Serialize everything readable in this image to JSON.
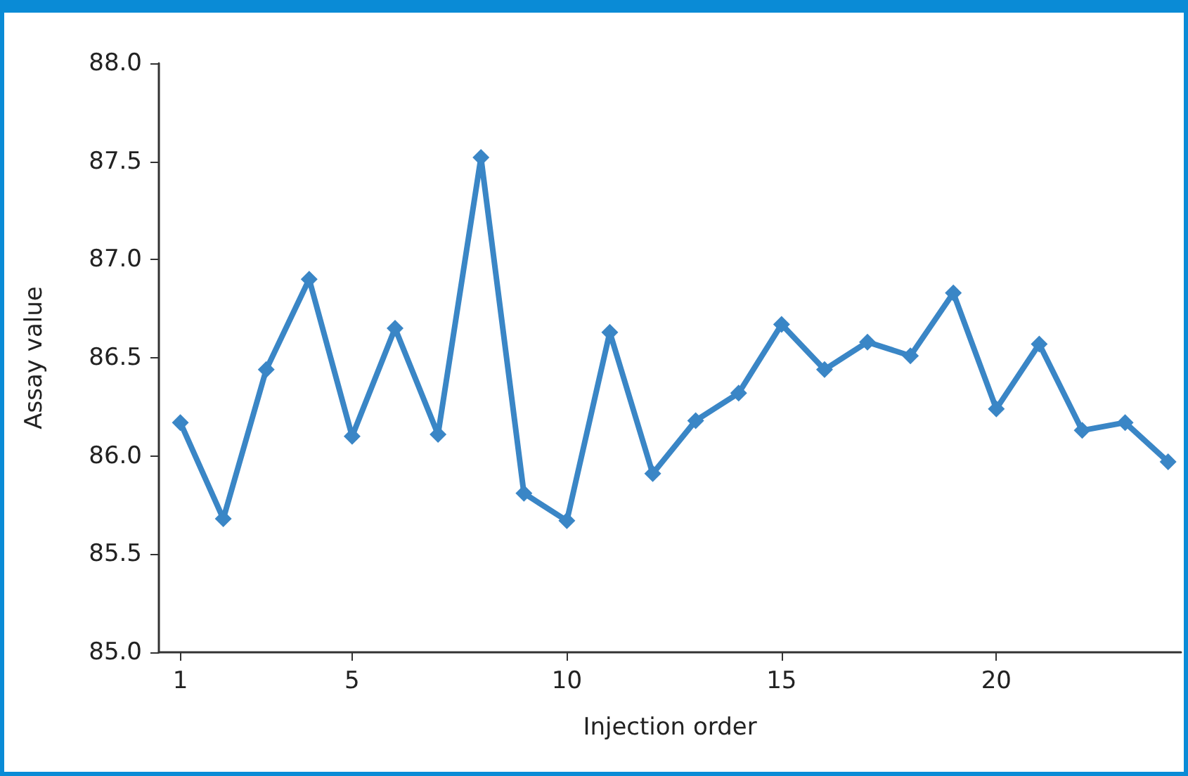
{
  "chart_data": {
    "type": "line",
    "xlabel": "Injection order",
    "ylabel": "Assay value",
    "x": [
      1,
      2,
      3,
      4,
      5,
      6,
      7,
      8,
      9,
      10,
      11,
      12,
      13,
      14,
      15,
      16,
      17,
      18,
      19,
      20,
      21,
      22,
      23,
      24
    ],
    "series": [
      {
        "color": "#3a86c6",
        "values": [
          86.17,
          85.68,
          86.44,
          86.9,
          86.1,
          86.65,
          86.11,
          87.52,
          85.81,
          85.67,
          86.63,
          85.91,
          86.18,
          86.32,
          86.67,
          86.44,
          86.58,
          86.51,
          86.83,
          86.24,
          86.57,
          86.13,
          86.17,
          85.97
        ]
      }
    ],
    "xlim": [
      0.5,
      24.3
    ],
    "xticks": [
      1,
      5,
      10,
      15,
      20
    ],
    "ylim": [
      85,
      88
    ],
    "yticks": [
      {
        "value": 85,
        "label": "85.0"
      },
      {
        "value": 85.5,
        "label": "85.5"
      },
      {
        "value": 86,
        "label": "86.0"
      },
      {
        "value": 86.5,
        "label": "86.5"
      },
      {
        "value": 87,
        "label": "87.0"
      },
      {
        "value": 87.5,
        "label": "87.5"
      },
      {
        "value": 88,
        "label": "88.0"
      }
    ],
    "marker": "diamond",
    "line_style": "solid"
  }
}
